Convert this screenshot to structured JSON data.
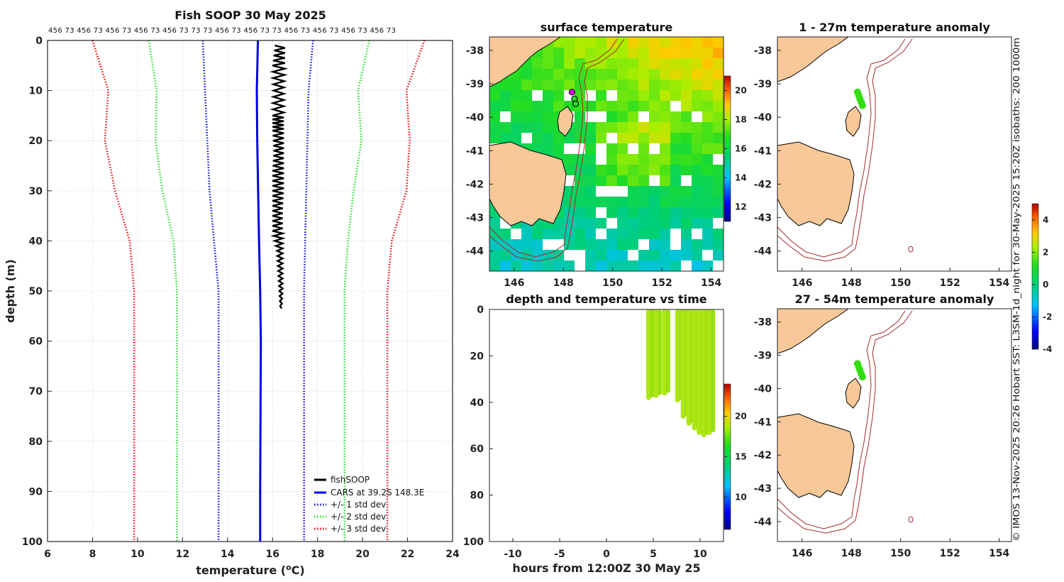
{
  "chart_data": [
    {
      "type": "line",
      "id": "profile",
      "title": "Fish SOOP 30 May 2025",
      "xlabel": "temperature (",
      "xlabel_sup": "o",
      "xlabel_unit": "C)",
      "ylabel": "depth (m)",
      "xlim": [
        6,
        24
      ],
      "ylim": [
        0,
        100
      ],
      "xticks": [
        6,
        8,
        10,
        12,
        14,
        16,
        18,
        20,
        22,
        24
      ],
      "yticks": [
        0,
        10,
        20,
        30,
        40,
        50,
        60,
        70,
        80,
        90,
        100
      ],
      "top_labels": "456 73 456 73 456 73 456 73 456 73 73 73 456 73 456 73 73 456 73 456 73 456 73 456 73",
      "legend": [
        "fishSOOP",
        "CARS at 39.2S 148.3E",
        "+/- 1 std dev",
        "+/- 2 std dev",
        "+/- 3 std dev"
      ],
      "series": [
        {
          "name": "CARS",
          "color": "#0000e6",
          "style": "solid",
          "depth": [
            0,
            10,
            20,
            30,
            40,
            50,
            60,
            70,
            80,
            90,
            100
          ],
          "temp": [
            15.35,
            15.3,
            15.32,
            15.36,
            15.4,
            15.45,
            15.48,
            15.47,
            15.46,
            15.45,
            15.45
          ]
        },
        {
          "name": "-1 std",
          "color": "#0000e6",
          "style": "dotted",
          "depth": [
            0,
            10,
            20,
            30,
            40,
            50,
            60,
            70,
            80,
            90,
            100
          ],
          "temp": [
            12.9,
            13.0,
            13.1,
            13.2,
            13.4,
            13.6,
            13.6,
            13.6,
            13.6,
            13.6,
            13.6
          ]
        },
        {
          "name": "+1 std",
          "color": "#0000e6",
          "style": "dotted",
          "depth": [
            0,
            10,
            20,
            30,
            40,
            50,
            60,
            70,
            80,
            90,
            100
          ],
          "temp": [
            17.8,
            17.6,
            17.55,
            17.5,
            17.45,
            17.4,
            17.4,
            17.4,
            17.4,
            17.4,
            17.4
          ]
        },
        {
          "name": "-2 std",
          "color": "#22dd22",
          "style": "dotted",
          "depth": [
            0,
            10,
            20,
            30,
            40,
            50,
            60,
            70,
            80,
            90,
            100
          ],
          "temp": [
            10.5,
            10.85,
            10.8,
            11.1,
            11.6,
            11.75,
            11.75,
            11.75,
            11.75,
            11.75,
            11.75
          ]
        },
        {
          "name": "+2 std",
          "color": "#22dd22",
          "style": "dotted",
          "depth": [
            0,
            10,
            20,
            30,
            40,
            50,
            60,
            70,
            80,
            90,
            100
          ],
          "temp": [
            20.3,
            19.8,
            19.95,
            19.6,
            19.35,
            19.2,
            19.2,
            19.2,
            19.2,
            19.2,
            19.2
          ]
        },
        {
          "name": "-3 std",
          "color": "#ee0000",
          "style": "dotted",
          "depth": [
            0,
            10,
            20,
            30,
            40,
            50,
            60,
            70,
            80,
            90,
            100
          ],
          "temp": [
            8.0,
            8.7,
            8.55,
            9.0,
            9.65,
            9.85,
            9.85,
            9.85,
            9.85,
            9.85,
            9.85
          ]
        },
        {
          "name": "+3 std",
          "color": "#ee0000",
          "style": "dotted",
          "depth": [
            0,
            10,
            20,
            30,
            40,
            50,
            60,
            70,
            80,
            90,
            100
          ],
          "temp": [
            22.75,
            21.95,
            22.1,
            21.95,
            21.3,
            21.1,
            21.1,
            21.1,
            21.1,
            21.1,
            21.1
          ]
        },
        {
          "name": "fishSOOP",
          "color": "#000000",
          "style": "solid",
          "depth": [
            1,
            5,
            10,
            15,
            18,
            22,
            26,
            30,
            34,
            38,
            42,
            46,
            50,
            54
          ],
          "temp_min": [
            16.1,
            16.0,
            16.05,
            16.0,
            16.0,
            16.05,
            16.0,
            16.0,
            16.0,
            16.0,
            16.2,
            16.25,
            16.3,
            16.35
          ],
          "temp_max": [
            16.55,
            16.55,
            16.5,
            16.5,
            16.5,
            16.5,
            16.5,
            16.5,
            16.45,
            16.45,
            16.45,
            16.45,
            16.45,
            16.4
          ]
        }
      ]
    },
    {
      "type": "heatmap",
      "id": "surface",
      "title": "surface temperature",
      "xlim": [
        145,
        154.5
      ],
      "ylim": [
        -44.6,
        -37.6
      ],
      "xticks": [
        146,
        148,
        150,
        152,
        154
      ],
      "yticks": [
        -38,
        -39,
        -40,
        -41,
        -42,
        -43,
        -44
      ],
      "colorbar": {
        "min": 11,
        "max": 21,
        "ticks": [
          12,
          14,
          16,
          18,
          20
        ]
      },
      "markers": [
        [
          148.35,
          -39.25
        ],
        [
          148.45,
          -39.45
        ],
        [
          148.5,
          -39.6
        ]
      ]
    },
    {
      "type": "scatter",
      "id": "timeseries",
      "title": "depth and temperature vs time",
      "xlabel": "hours from 12:00Z 30 May 25",
      "xlim": [
        -12.5,
        12.5
      ],
      "ylim": [
        0,
        100
      ],
      "xticks": [
        -10,
        -5,
        0,
        5,
        10
      ],
      "yticks": [
        0,
        20,
        40,
        60,
        80,
        100
      ],
      "colorbar": {
        "min": 6,
        "max": 24,
        "ticks": [
          10,
          15,
          20
        ]
      },
      "casts": [
        {
          "t": 4.5,
          "max_depth": 38
        },
        {
          "t": 5.3,
          "max_depth": 37
        },
        {
          "t": 6.2,
          "max_depth": 36
        },
        {
          "t": 7.6,
          "max_depth": 39
        },
        {
          "t": 8.2,
          "max_depth": 46
        },
        {
          "t": 8.8,
          "max_depth": 49
        },
        {
          "t": 9.4,
          "max_depth": 51
        },
        {
          "t": 9.9,
          "max_depth": 53
        },
        {
          "t": 10.4,
          "max_depth": 54
        },
        {
          "t": 11.0,
          "max_depth": 53
        }
      ]
    },
    {
      "type": "scatter",
      "id": "anom1",
      "title": "1 - 27m temperature anomaly",
      "xlim": [
        145,
        154.5
      ],
      "ylim": [
        -44.6,
        -37.6
      ],
      "xticks": [
        146,
        148,
        150,
        152,
        154
      ],
      "yticks": [
        -38,
        -39,
        -40,
        -41,
        -42,
        -43,
        -44
      ],
      "points": [
        [
          148.25,
          -39.25
        ],
        [
          148.3,
          -39.35
        ],
        [
          148.35,
          -39.45
        ],
        [
          148.4,
          -39.55
        ],
        [
          148.45,
          -39.65
        ]
      ]
    },
    {
      "type": "scatter",
      "id": "anom2",
      "title": "27 - 54m temperature anomaly",
      "xlim": [
        145,
        154.5
      ],
      "ylim": [
        -44.6,
        -37.6
      ],
      "xticks": [
        146,
        148,
        150,
        152,
        154
      ],
      "yticks": [
        -38,
        -39,
        -40,
        -41,
        -42,
        -43,
        -44
      ],
      "points": [
        [
          148.25,
          -39.25
        ],
        [
          148.3,
          -39.35
        ],
        [
          148.35,
          -39.45
        ],
        [
          148.4,
          -39.55
        ],
        [
          148.45,
          -39.65
        ]
      ],
      "colorbar": {
        "min": -4,
        "max": 5,
        "ticks": [
          -4,
          -2,
          0,
          2,
          4
        ]
      }
    }
  ],
  "footer": "© IMOS 13-Nov-2025 20:26 Hobart SST: L3SM-1d_night for 30-May-2025 15:20Z isobaths: 200  1000m"
}
